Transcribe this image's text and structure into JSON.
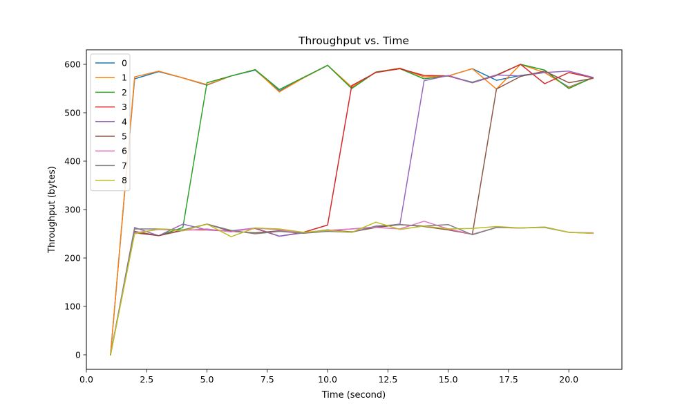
{
  "chart_data": {
    "type": "line",
    "title": "Throughput vs. Time",
    "xlabel": "Time (second)",
    "ylabel": "Throughput (bytes)",
    "xlim": [
      0,
      22.2
    ],
    "ylim": [
      -30,
      630
    ],
    "xticks": [
      0,
      2.5,
      5,
      7.5,
      10,
      12.5,
      15,
      17.5,
      20
    ],
    "xtick_labels": [
      "0.0",
      "2.5",
      "5.0",
      "7.5",
      "10.0",
      "12.5",
      "15.0",
      "17.5",
      "20.0"
    ],
    "yticks": [
      0,
      100,
      200,
      300,
      400,
      500,
      600
    ],
    "ytick_labels": [
      "0",
      "100",
      "200",
      "300",
      "400",
      "500",
      "600"
    ],
    "grid": false,
    "legend_position": "top-left",
    "x": [
      1,
      2,
      3,
      4,
      5,
      6,
      7,
      8,
      9,
      10,
      11,
      12,
      13,
      14,
      15,
      16,
      17,
      18,
      19,
      20,
      21
    ],
    "series": [
      {
        "name": "0",
        "color": "#1f77b4",
        "values": [
          0,
          570,
          585,
          572,
          557,
          576,
          588,
          545,
          572,
          598,
          552,
          584,
          592,
          574,
          576,
          591,
          567,
          577,
          583,
          553,
          572
        ]
      },
      {
        "name": "1",
        "color": "#ff7f0e",
        "values": [
          0,
          574,
          586,
          572,
          558,
          576,
          589,
          543,
          572,
          598,
          553,
          584,
          592,
          574,
          576,
          591,
          549,
          600,
          583,
          552,
          572
        ]
      },
      {
        "name": "2",
        "color": "#2ca02c",
        "values": [
          0,
          255,
          246,
          263,
          562,
          576,
          589,
          548,
          573,
          598,
          550,
          584,
          591,
          570,
          576,
          563,
          578,
          600,
          588,
          550,
          573
        ]
      },
      {
        "name": "3",
        "color": "#d62728",
        "values": [
          0,
          254,
          246,
          258,
          258,
          255,
          261,
          245,
          253,
          268,
          556,
          583,
          591,
          577,
          576,
          562,
          577,
          600,
          560,
          583,
          572
        ]
      },
      {
        "name": "4",
        "color": "#9467bd",
        "values": [
          0,
          263,
          246,
          270,
          258,
          256,
          262,
          245,
          252,
          257,
          260,
          264,
          270,
          566,
          577,
          562,
          578,
          576,
          583,
          586,
          573
        ]
      },
      {
        "name": "5",
        "color": "#8c564b",
        "values": [
          0,
          252,
          246,
          257,
          270,
          255,
          252,
          256,
          252,
          258,
          254,
          263,
          269,
          265,
          258,
          249,
          549,
          575,
          586,
          562,
          571
        ]
      },
      {
        "name": "6",
        "color": "#e377c2",
        "values": [
          0,
          252,
          259,
          257,
          260,
          254,
          262,
          258,
          251,
          257,
          260,
          263,
          260,
          276,
          260,
          249,
          263,
          262,
          264,
          253,
          252
        ]
      },
      {
        "name": "7",
        "color": "#7f7f7f",
        "values": [
          0,
          260,
          260,
          258,
          270,
          257,
          250,
          255,
          251,
          255,
          253,
          266,
          269,
          266,
          269,
          248,
          263,
          262,
          263,
          253,
          251
        ]
      },
      {
        "name": "8",
        "color": "#bcbd22",
        "values": [
          0,
          250,
          260,
          256,
          270,
          244,
          262,
          260,
          253,
          257,
          253,
          274,
          259,
          266,
          260,
          261,
          265,
          262,
          264,
          253,
          251
        ]
      }
    ]
  }
}
